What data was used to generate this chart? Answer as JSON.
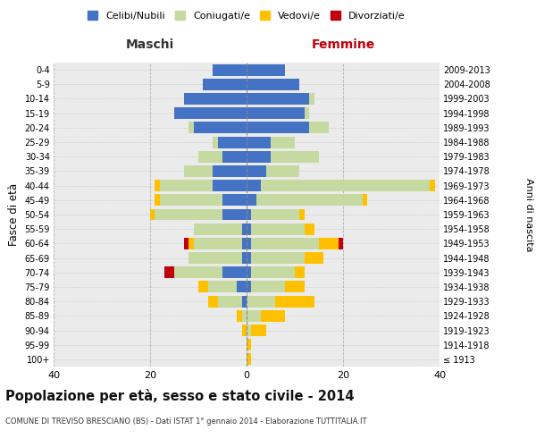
{
  "age_groups": [
    "100+",
    "95-99",
    "90-94",
    "85-89",
    "80-84",
    "75-79",
    "70-74",
    "65-69",
    "60-64",
    "55-59",
    "50-54",
    "45-49",
    "40-44",
    "35-39",
    "30-34",
    "25-29",
    "20-24",
    "15-19",
    "10-14",
    "5-9",
    "0-4"
  ],
  "birth_years": [
    "≤ 1913",
    "1914-1918",
    "1919-1923",
    "1924-1928",
    "1929-1933",
    "1934-1938",
    "1939-1943",
    "1944-1948",
    "1949-1953",
    "1954-1958",
    "1959-1963",
    "1964-1968",
    "1969-1973",
    "1974-1978",
    "1979-1983",
    "1984-1988",
    "1989-1993",
    "1994-1998",
    "1999-2003",
    "2004-2008",
    "2009-2013"
  ],
  "males": {
    "celibi": [
      0,
      0,
      0,
      0,
      1,
      2,
      5,
      1,
      1,
      1,
      5,
      5,
      7,
      7,
      5,
      6,
      11,
      15,
      13,
      9,
      7
    ],
    "coniugati": [
      0,
      0,
      0,
      1,
      5,
      6,
      10,
      11,
      10,
      10,
      14,
      13,
      11,
      6,
      5,
      1,
      1,
      0,
      0,
      0,
      0
    ],
    "vedovi": [
      0,
      0,
      1,
      1,
      2,
      2,
      0,
      0,
      1,
      0,
      1,
      1,
      1,
      0,
      0,
      0,
      0,
      0,
      0,
      0,
      0
    ],
    "divorziati": [
      0,
      0,
      0,
      0,
      0,
      0,
      2,
      0,
      1,
      0,
      0,
      0,
      0,
      0,
      0,
      0,
      0,
      0,
      0,
      0,
      0
    ]
  },
  "females": {
    "nubili": [
      0,
      0,
      0,
      0,
      0,
      1,
      1,
      1,
      1,
      1,
      1,
      2,
      3,
      4,
      5,
      5,
      13,
      12,
      13,
      11,
      8
    ],
    "coniugate": [
      0,
      0,
      1,
      3,
      6,
      7,
      9,
      11,
      14,
      11,
      10,
      22,
      35,
      7,
      10,
      5,
      4,
      1,
      1,
      0,
      0
    ],
    "vedove": [
      1,
      1,
      3,
      5,
      8,
      4,
      2,
      4,
      4,
      2,
      1,
      1,
      1,
      0,
      0,
      0,
      0,
      0,
      0,
      0,
      0
    ],
    "divorziate": [
      0,
      0,
      0,
      0,
      0,
      0,
      0,
      0,
      1,
      0,
      0,
      0,
      0,
      0,
      0,
      0,
      0,
      0,
      0,
      0,
      0
    ]
  },
  "colors": {
    "celibi_nubili": "#4472c4",
    "coniugati": "#c5d9a0",
    "vedovi": "#ffc000",
    "divorziati": "#c0000b"
  },
  "title": "Popolazione per età, sesso e stato civile - 2014",
  "subtitle": "COMUNE DI TREVISO BRESCIANO (BS) - Dati ISTAT 1° gennaio 2014 - Elaborazione TUTTITALIA.IT",
  "xlabel_left": "Maschi",
  "xlabel_right": "Femmine",
  "ylabel": "Fasce di età",
  "ylabel_right": "Anni di nascita",
  "xlim": 40,
  "bg_color": "#ffffff",
  "grid_color": "#cccccc",
  "legend_labels": [
    "Celibi/Nubili",
    "Coniugati/e",
    "Vedovi/e",
    "Divorziati/e"
  ]
}
